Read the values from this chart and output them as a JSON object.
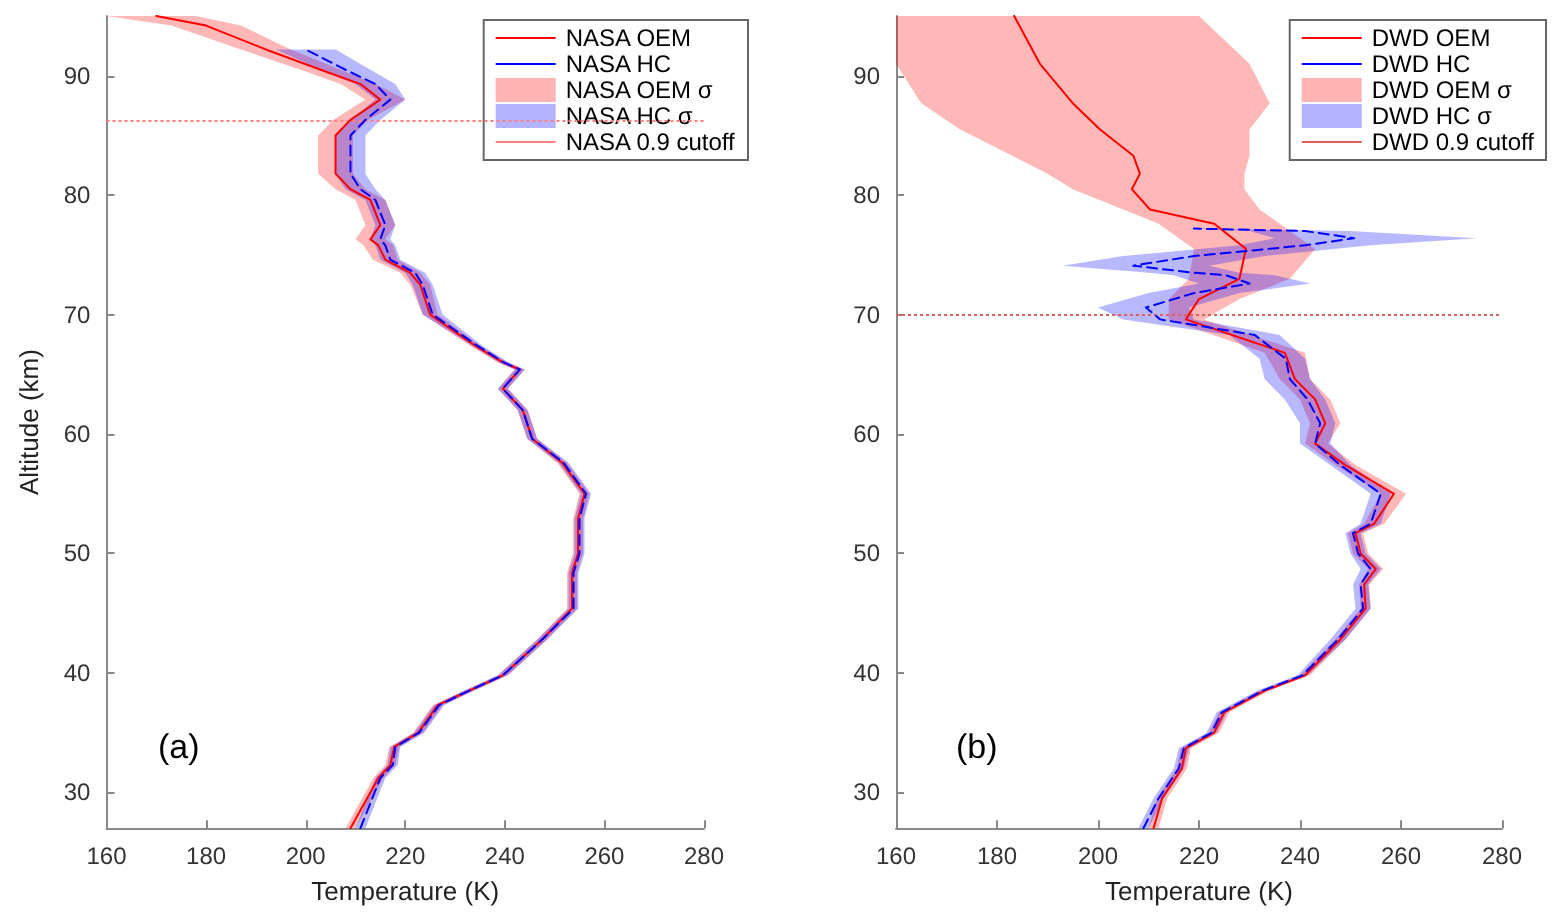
{
  "chart_data": [
    {
      "type": "line",
      "orientation": "horizontal",
      "xlabel": "Temperature (K)",
      "ylabel": "Altitude (km)",
      "xlim": [
        160,
        280
      ],
      "xticks": [
        160,
        180,
        200,
        220,
        240,
        260,
        280
      ],
      "ylim": [
        27,
        95
      ],
      "yticks": [
        30,
        40,
        50,
        60,
        70,
        80,
        90
      ],
      "legend": "top right",
      "annotations": [
        "(a)"
      ],
      "ref_lines": [
        {
          "axis": "y",
          "value": 86.3,
          "label": "NASA 0.9 cutoff",
          "color": "#ff8080",
          "line_style": "dotted"
        }
      ],
      "series": [
        {
          "name": "NASA OEM",
          "color": "#ff0000",
          "line_style": "solid",
          "x": [
            27,
            31.2,
            32.3,
            33.8,
            35,
            37.3,
            38.3,
            39.8,
            42.8,
            45.4,
            48.4,
            50,
            52.9,
            55,
            57.6,
            59.6,
            62,
            63.8,
            65.4,
            66,
            67.4,
            70,
            72.5,
            73.5,
            74.6,
            75.8,
            76.3,
            77.5,
            79.6,
            80.5,
            81.8,
            85,
            86.3,
            88,
            89.3,
            90.5,
            92.2,
            94.2,
            95
          ],
          "values": [
            209,
            214.6,
            217,
            217.8,
            222.6,
            226.5,
            231.7,
            239.6,
            247.5,
            253.5,
            253.5,
            254.7,
            254.7,
            256,
            251.5,
            245.5,
            243.6,
            239.6,
            243,
            239.6,
            234,
            225,
            223,
            221,
            216,
            214.6,
            213,
            215,
            213,
            209,
            206,
            206,
            209,
            215,
            211,
            203,
            192,
            180,
            170
          ],
          "lower": [
            208,
            213.6,
            216,
            216.8,
            221.6,
            225.5,
            230.7,
            238.6,
            246.5,
            252.5,
            252.5,
            253.7,
            253.7,
            255,
            250.5,
            244.5,
            242.6,
            238.6,
            242,
            238.6,
            233,
            223.5,
            221,
            219,
            213.5,
            211.6,
            210,
            212,
            210,
            206,
            202.5,
            202.5,
            205.5,
            212,
            207,
            199,
            187,
            173,
            160
          ],
          "upper": [
            210,
            215.6,
            218,
            218.8,
            223.6,
            227.5,
            232.7,
            240.6,
            248.5,
            254.5,
            254.5,
            255.7,
            255.7,
            257,
            252.5,
            246.5,
            244.6,
            240.6,
            244,
            240.6,
            235,
            226.5,
            225,
            223,
            218.5,
            217.6,
            216,
            218,
            216,
            212,
            209.5,
            209.5,
            212.5,
            220,
            214,
            207,
            197,
            187,
            178
          ]
        },
        {
          "name": "NASA HC",
          "color": "#0000ff",
          "line_style": "dashed",
          "x": [
            27,
            31.2,
            32.3,
            33.8,
            35,
            37.3,
            38.3,
            39.8,
            42.8,
            45.4,
            48.4,
            50,
            52.9,
            55,
            57.6,
            59.6,
            62,
            63.8,
            65.4,
            66,
            67.4,
            70,
            72.5,
            73.5,
            74.6,
            75.8,
            76.3,
            77.5,
            79.6,
            80.5,
            81.8,
            85,
            86.3,
            88,
            89.3,
            90.5,
            92.2
          ],
          "values": [
            211,
            215,
            217.5,
            218,
            222.8,
            226.8,
            231.7,
            239.6,
            247.5,
            253.8,
            253.8,
            255,
            255,
            256.3,
            251.8,
            245.5,
            243.6,
            239.6,
            243,
            239.8,
            234.5,
            225.5,
            223.5,
            222,
            217,
            216,
            215,
            216,
            214,
            211,
            209,
            209,
            212,
            217,
            214,
            208,
            200
          ],
          "lower": [
            210,
            214,
            216.5,
            217,
            221.8,
            225.8,
            230.7,
            238.6,
            246.5,
            252.8,
            252.8,
            254,
            254,
            255.3,
            250.8,
            244.5,
            242.6,
            238.6,
            242,
            238.8,
            233.5,
            223.5,
            221.5,
            220,
            215,
            214,
            213,
            214,
            212,
            208,
            206,
            206,
            209,
            214,
            210,
            203,
            194
          ],
          "upper": [
            212,
            216,
            218.5,
            219,
            223.8,
            227.8,
            232.7,
            240.6,
            248.5,
            254.8,
            254.8,
            256,
            256,
            257.3,
            252.8,
            246.5,
            244.6,
            240.6,
            244,
            240.8,
            235.5,
            227.5,
            225.5,
            224,
            219,
            218,
            217,
            218,
            216,
            214,
            212,
            212,
            215,
            220,
            218,
            213,
            206
          ]
        },
        {
          "name": "NASA OEM σ",
          "type": "area",
          "color": "#ffb3b3"
        },
        {
          "name": "NASA HC σ",
          "type": "area",
          "color": "#b3b3ff"
        }
      ]
    },
    {
      "type": "line",
      "orientation": "horizontal",
      "xlabel": "Temperature (K)",
      "xlim": [
        160,
        280
      ],
      "xticks": [
        160,
        180,
        200,
        220,
        240,
        260,
        280
      ],
      "ylim": [
        27,
        95
      ],
      "yticks": [
        30,
        40,
        50,
        60,
        70,
        80,
        90
      ],
      "legend": "top right",
      "annotations": [
        "(b)"
      ],
      "ref_lines": [
        {
          "axis": "y",
          "value": 70,
          "label": "DWD 0.9 cutoff",
          "color": "#e06060",
          "line_style": "dotted"
        }
      ],
      "series": [
        {
          "name": "DWD OEM",
          "color": "#ff0000",
          "line_style": "solid",
          "x": [
            27,
            29.5,
            32,
            33.7,
            35,
            36.7,
            38.5,
            39.8,
            42.8,
            45.4,
            47.4,
            48.7,
            50,
            51.7,
            52.5,
            55,
            57.4,
            59.2,
            60.9,
            62.9,
            64.6,
            66.8,
            69.6,
            71.3,
            73,
            75.5,
            77.6,
            78.8,
            80.5,
            81.8,
            83.3,
            85.5,
            87.7,
            91,
            95
          ],
          "values": [
            211,
            212.7,
            216.6,
            217.4,
            223,
            225,
            232.9,
            241,
            248,
            253,
            252.7,
            255,
            252,
            251,
            254.7,
            258.6,
            249,
            243,
            245,
            243,
            239,
            237,
            217.4,
            220,
            228,
            229.3,
            223,
            210.3,
            206.7,
            208.3,
            207,
            200.4,
            195,
            188.5,
            183.4
          ],
          "lower": [
            210,
            211.7,
            215.6,
            216.4,
            222,
            224,
            231.9,
            240,
            247,
            252,
            251.7,
            253.5,
            250.5,
            249.5,
            252.7,
            256,
            247,
            241,
            242,
            240,
            236,
            233,
            214,
            214,
            218,
            219,
            212,
            205,
            195,
            190,
            183,
            172.7,
            165,
            160,
            160
          ],
          "upper": [
            212,
            213.7,
            217.6,
            218.4,
            224,
            226,
            233.9,
            242,
            249,
            254,
            253.7,
            256.5,
            253.5,
            252.5,
            256.7,
            261,
            251,
            245.5,
            248,
            246,
            242,
            241,
            221,
            228,
            238,
            243,
            236,
            232,
            229,
            229,
            230,
            230,
            234,
            230,
            220
          ]
        },
        {
          "name": "DWD HC",
          "color": "#0000ff",
          "line_style": "dashed",
          "x": [
            27,
            29.5,
            32,
            33.7,
            35,
            36.7,
            38.5,
            39.8,
            42.8,
            45.4,
            47.4,
            48.7,
            50,
            51.7,
            52.5,
            55,
            57.4,
            59.2,
            60.9,
            62.9,
            64.6,
            66.3,
            68.3,
            69.6,
            70.6,
            71.8,
            72.6,
            73.3,
            73.5,
            74.1,
            74.9,
            75.8,
            76.4,
            77,
            77.2
          ],
          "values": [
            209,
            212,
            216,
            217,
            222.5,
            224.5,
            232.5,
            240.5,
            247.5,
            252.5,
            252,
            254,
            251.5,
            250.5,
            254,
            256,
            248,
            243,
            244,
            241.5,
            238,
            237.2,
            231,
            212.3,
            209.5,
            219,
            230,
            225.3,
            219,
            207,
            219,
            241,
            250.7,
            241,
            219
          ],
          "lower": [
            208,
            211,
            215,
            216,
            221.5,
            223.5,
            231.5,
            239.5,
            246,
            251,
            250.5,
            252,
            250,
            249,
            252,
            254,
            246,
            240,
            240,
            237,
            233,
            232,
            226,
            205,
            200,
            210,
            220,
            215,
            210,
            193,
            205,
            228,
            235,
            230,
            217
          ],
          "upper": [
            210,
            213,
            217,
            218,
            223.5,
            225.5,
            233.5,
            241.5,
            249,
            254,
            253.5,
            256,
            253,
            252,
            256,
            258,
            250,
            246,
            247,
            245,
            242,
            241,
            236,
            219,
            218,
            228,
            242,
            235,
            228,
            222,
            233,
            254,
            275,
            250,
            221
          ]
        },
        {
          "name": "DWD OEM σ",
          "type": "area",
          "color": "#ffb3b3"
        },
        {
          "name": "DWD HC σ",
          "type": "area",
          "color": "#b3b3ff"
        }
      ]
    }
  ]
}
